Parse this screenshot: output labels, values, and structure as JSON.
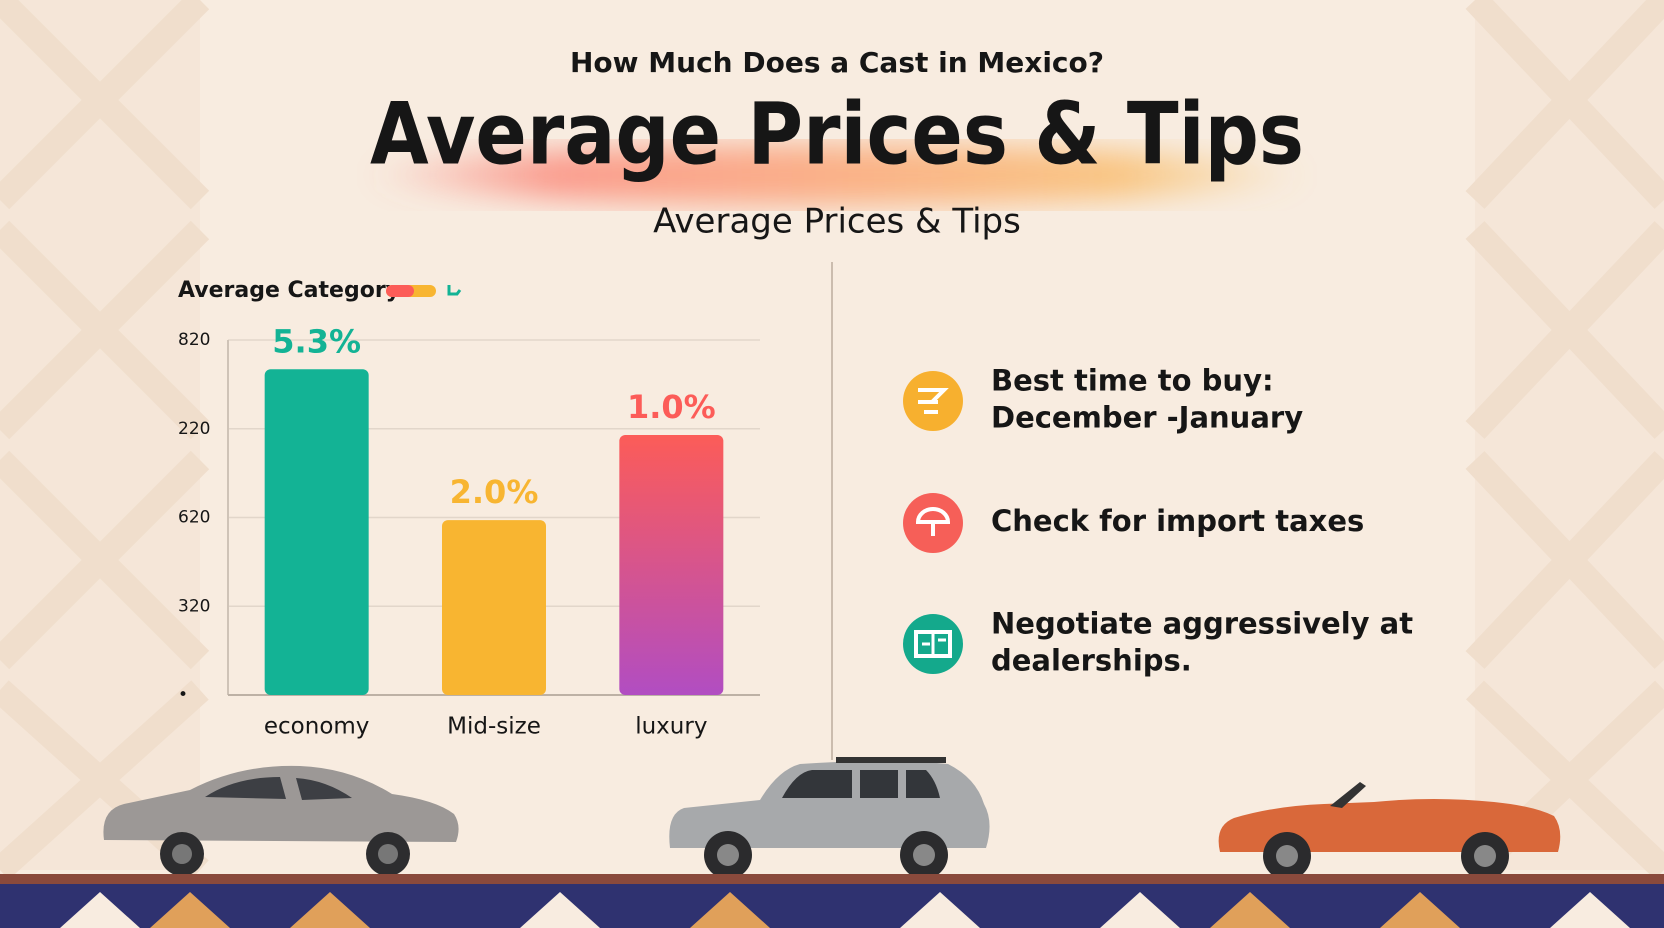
{
  "header": {
    "pretitle": "How Much Does a Cast in Mexico?",
    "title": "Average Prices & Tips",
    "subtitle": "Average Prices & Tips"
  },
  "chart_data": {
    "type": "bar",
    "legend_title": "Average Category",
    "categories": [
      "economy",
      "Mid-size",
      "luxury"
    ],
    "values": [
      3.67,
      1.97,
      2.93
    ],
    "annotations": [
      "5.3%",
      "2.0%",
      "1.0%"
    ],
    "colors": [
      [
        "#13b395"
      ],
      [
        "#f8b531"
      ],
      [
        "#fc5c58",
        "#b14dc2"
      ]
    ],
    "ylim": [
      0,
      4
    ],
    "yticks": [
      {
        "value": 0,
        "label": "•"
      },
      {
        "value": 1,
        "label": "320"
      },
      {
        "value": 2,
        "label": "620"
      },
      {
        "value": 3,
        "label": "220"
      },
      {
        "value": 4,
        "label": "820"
      }
    ],
    "grid": true
  },
  "tips": [
    [
      "Best time to buy:",
      "December -January"
    ],
    [
      "Check for import taxes"
    ],
    [
      "Negotiate aggressively at",
      "dealerships."
    ]
  ]
}
